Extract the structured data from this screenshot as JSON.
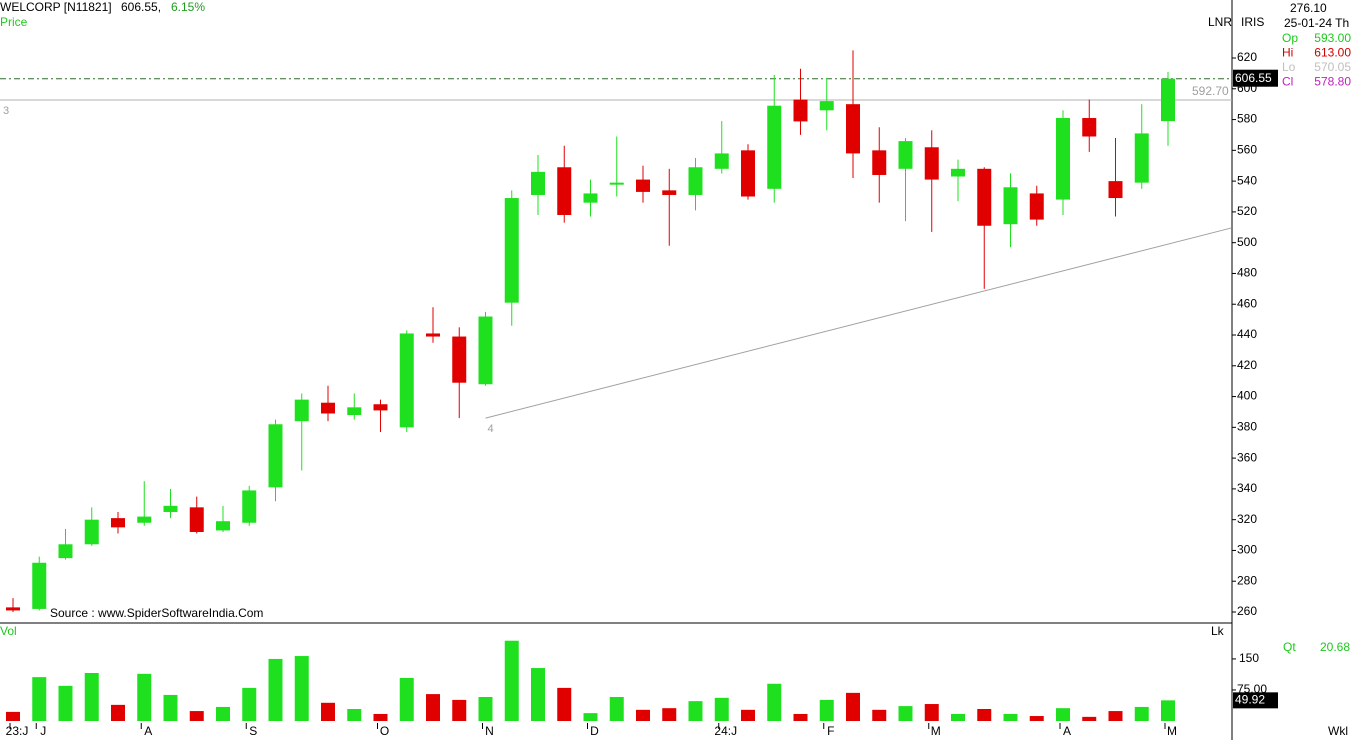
{
  "chart_data": {
    "type": "candlestick",
    "title": "WELCORP [N11821]",
    "last_text": "606.55,",
    "change": "6.15%",
    "panel_label": "Price",
    "source": "Source : www.SpiderSoftwareIndia.Com",
    "up_color": "#1ee01e",
    "down_color": "#e00000",
    "categories": [
      "23:J",
      "J",
      null,
      null,
      null,
      "A",
      null,
      null,
      null,
      "S",
      null,
      null,
      null,
      null,
      "O",
      null,
      null,
      null,
      "N",
      null,
      null,
      null,
      "D",
      null,
      null,
      null,
      null,
      "24:J",
      null,
      null,
      null,
      "F",
      null,
      null,
      null,
      "M",
      null,
      null,
      null,
      null,
      "A",
      null,
      null,
      null,
      "M"
    ],
    "open": [
      263,
      262,
      295,
      304,
      321,
      318,
      325,
      328,
      313,
      318,
      341,
      384,
      396,
      388,
      395,
      380,
      441,
      439,
      408,
      461,
      531,
      549,
      526,
      538,
      541,
      534,
      531,
      548,
      560,
      535,
      593,
      586,
      590,
      560,
      548,
      562,
      543,
      548,
      512,
      532,
      528,
      581,
      540,
      539,
      579
    ],
    "high": [
      269,
      296,
      314,
      328,
      325,
      345,
      340,
      335,
      329,
      342,
      385,
      402,
      407,
      402,
      398,
      443,
      458,
      445,
      455,
      534,
      557,
      563,
      541,
      569,
      550,
      548,
      555,
      579,
      564,
      609,
      613,
      607,
      625,
      575,
      568,
      573,
      554,
      549,
      545,
      537,
      586,
      593,
      568,
      590,
      611
    ],
    "low": [
      260,
      261,
      294,
      303,
      311,
      316,
      321,
      311,
      312,
      316,
      332,
      352,
      384,
      385,
      377,
      377,
      435,
      386,
      407,
      446,
      518,
      513,
      517,
      530,
      526,
      498,
      521,
      545,
      528,
      526,
      570.05,
      573,
      542,
      526,
      514,
      507,
      527,
      470,
      497,
      511,
      518,
      559,
      517,
      535,
      563
    ],
    "close": [
      261,
      292,
      304,
      320,
      315,
      322,
      329,
      312,
      319,
      339,
      382,
      398,
      389,
      393,
      391,
      441,
      439,
      409,
      452,
      529,
      546,
      518,
      532,
      539,
      533,
      531,
      549,
      558,
      530,
      589,
      578.8,
      592,
      558,
      544,
      566,
      541,
      548,
      511,
      536,
      515,
      581,
      569,
      529,
      571,
      606.55
    ],
    "ylim": [
      253.5,
      657.7
    ],
    "yticks": [
      260,
      280,
      300,
      320,
      340,
      360,
      380,
      400,
      420,
      440,
      460,
      480,
      500,
      520,
      540,
      560,
      580,
      600,
      620
    ],
    "hlines": [
      {
        "value": 606.55,
        "style": "dashdot",
        "color": "#2e6b2e"
      },
      {
        "value": 592.7,
        "value_label": "592.70",
        "label": "3",
        "style": "solid",
        "color": "#b0b0b0"
      }
    ],
    "trendline": {
      "label": "4",
      "start": [
        18,
        386
      ],
      "end": [
        46.4,
        509.5
      ],
      "color": "#a0a0a0"
    },
    "indicators": [
      "LNR",
      "IRIS"
    ],
    "info": {
      "value": "276.10",
      "date": "25-01-24 Th",
      "rows": [
        {
          "label": "Op",
          "value": "593.00",
          "color": "#1ec81e"
        },
        {
          "label": "Hi",
          "value": "613.00",
          "color": "#d00000"
        },
        {
          "label": "Lo",
          "value": "570.05",
          "color": "#c0c0c0"
        },
        {
          "label": "Cl",
          "value": "578.80",
          "color": "#c020c0"
        }
      ]
    },
    "volume": {
      "label": "Vol",
      "unit_label": "Lk",
      "qt_label": "Qt",
      "qt_value": "20.68",
      "period": "Wkl",
      "values": [
        22,
        106,
        85,
        116,
        39,
        114,
        63,
        24,
        34,
        80,
        150,
        157,
        44,
        29,
        17,
        104,
        65,
        51,
        58,
        194,
        128,
        80,
        19,
        58,
        27,
        31,
        48,
        56,
        27,
        90,
        17,
        51,
        68,
        27,
        36,
        41,
        17,
        29,
        17,
        12,
        31,
        10,
        24,
        34,
        49.92
      ],
      "ylim": [
        0,
        232
      ],
      "yticks": [
        150,
        {
          "value": 75,
          "label": "75.00"
        }
      ]
    }
  }
}
